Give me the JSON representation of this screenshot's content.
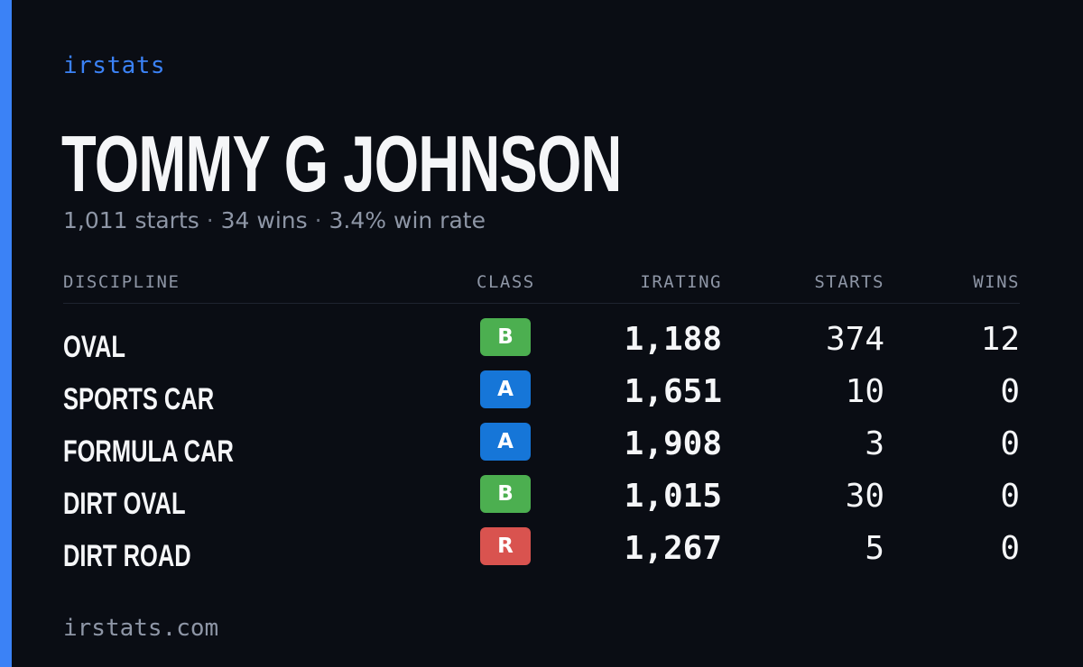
{
  "brand": "irstats",
  "player": {
    "name": "TOMMY G JOHNSON",
    "starts_text": "1,011 starts",
    "wins_text": "34 wins",
    "win_rate_text": "3.4% win rate",
    "separator": "·"
  },
  "table": {
    "headers": {
      "discipline": "DISCIPLINE",
      "class": "CLASS",
      "irating": "IRATING",
      "starts": "STARTS",
      "wins": "WINS"
    },
    "rows": [
      {
        "discipline": "OVAL",
        "class": "B",
        "class_color": "#4caf50",
        "irating": "1,188",
        "starts": "374",
        "wins": "12"
      },
      {
        "discipline": "SPORTS CAR",
        "class": "A",
        "class_color": "#1676d8",
        "irating": "1,651",
        "starts": "10",
        "wins": "0"
      },
      {
        "discipline": "FORMULA CAR",
        "class": "A",
        "class_color": "#1676d8",
        "irating": "1,908",
        "starts": "3",
        "wins": "0"
      },
      {
        "discipline": "DIRT OVAL",
        "class": "B",
        "class_color": "#4caf50",
        "irating": "1,015",
        "starts": "30",
        "wins": "0"
      },
      {
        "discipline": "DIRT ROAD",
        "class": "R",
        "class_color": "#d9534f",
        "irating": "1,267",
        "starts": "5",
        "wins": "0"
      }
    ]
  },
  "footer": {
    "url": "irstats.com"
  },
  "colors": {
    "background": "#0a0d14",
    "accent": "#3b82f6",
    "muted": "#8e96a6",
    "text": "#f5f6f8"
  }
}
